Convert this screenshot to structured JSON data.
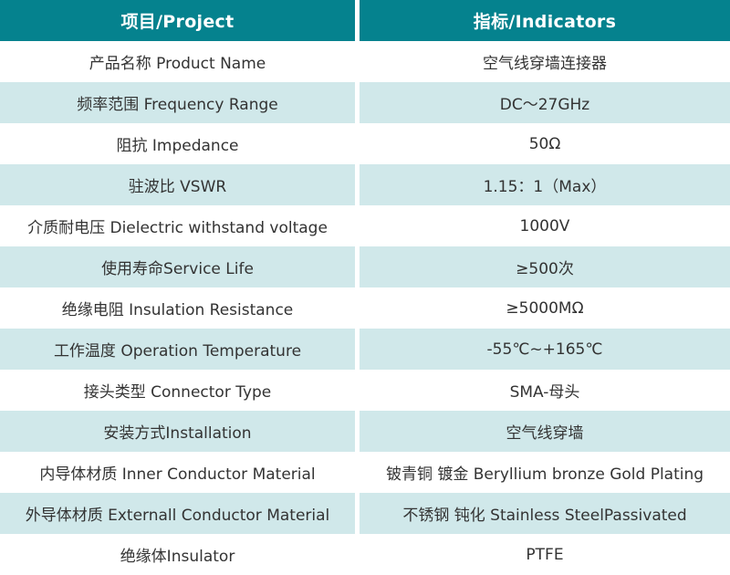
{
  "table": {
    "header": {
      "project": "项目/Project",
      "indicators": "指标/Indicators"
    },
    "rows": [
      {
        "project": "产品名称 Product Name",
        "indicator": "空气线穿墙连接器"
      },
      {
        "project": "频率范围 Frequency Range",
        "indicator": "DC～27GHz"
      },
      {
        "project": "阻抗 Impedance",
        "indicator": "50Ω"
      },
      {
        "project": "驻波比 VSWR",
        "indicator": "1.15：1（Max）"
      },
      {
        "project": "介质耐电压 Dielectric withstand voltage",
        "indicator": "1000V"
      },
      {
        "project": "使用寿命Service Life",
        "indicator": "≥500次"
      },
      {
        "project": "绝缘电阻 Insulation Resistance",
        "indicator": "≥5000MΩ"
      },
      {
        "project": "工作温度 Operation Temperature",
        "indicator": "-55℃~+165℃"
      },
      {
        "project": "接头类型 Connector Type",
        "indicator": "SMA-母头"
      },
      {
        "project": "安装方式Installation",
        "indicator": "空气线穿墙"
      },
      {
        "project": "内导体材质 Inner Conductor Material",
        "indicator": "铍青铜 镀金 Beryllium bronze Gold Plating"
      },
      {
        "project": "外导体材质 Externall Conductor Material",
        "indicator": "不锈钢 钝化 Stainless SteelPassivated"
      },
      {
        "project": "绝缘体Insulator",
        "indicator": "PTFE"
      }
    ],
    "colors": {
      "header_bg": "#05828E",
      "header_text": "#FFFFFF",
      "row_bg": "#FFFFFF",
      "row_alt_bg": "#D0E8EA",
      "body_text": "#333333"
    }
  }
}
